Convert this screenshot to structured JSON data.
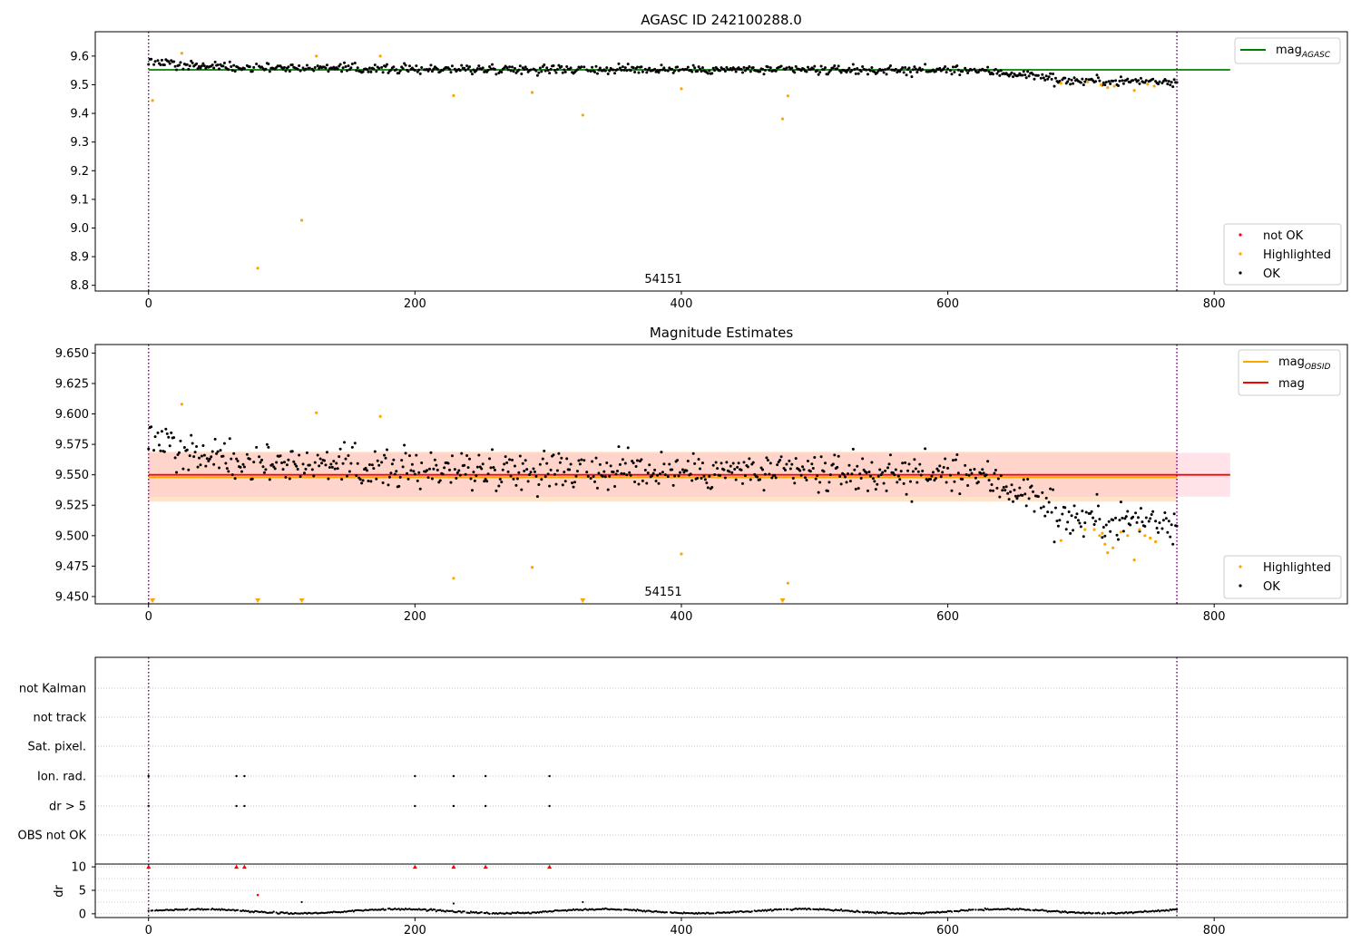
{
  "figure": {
    "background": "#ffffff"
  },
  "colors": {
    "ok": "#000000",
    "highlighted": "#ffa500",
    "not_ok": "#ff0000",
    "agasc_line": "#008000",
    "obsid_line": "#ffa500",
    "mag_line": "#ff0000",
    "mag_band": "#ffc0cb",
    "obsid_band": "#ffdab9",
    "vline": "#800080",
    "grid": "#b0b0b0"
  },
  "chart_data": [
    {
      "type": "scatter",
      "title": "AGASC ID 242100288.0",
      "xlim": [
        -40,
        900
      ],
      "ylim": [
        8.78,
        9.685
      ],
      "xticks": [
        0,
        200,
        400,
        600,
        800
      ],
      "yticks": [
        8.8,
        8.9,
        9.0,
        9.1,
        9.2,
        9.3,
        9.4,
        9.5,
        9.6
      ],
      "ytick_labels": [
        "8.8",
        "8.9",
        "9.0",
        "9.1",
        "9.2",
        "9.3",
        "9.4",
        "9.5",
        "9.6"
      ],
      "vlines": [
        0,
        772
      ],
      "hline": {
        "value": 9.552,
        "xmin": 0,
        "xmax": 812
      },
      "annotation": {
        "text": "54151",
        "x": 385,
        "y": 8.81
      },
      "legend_lines": {
        "items": [
          "mag_{AGASC}"
        ],
        "base": [
          "mag"
        ],
        "sub": [
          "AGASC"
        ],
        "placement": "upper right"
      },
      "legend_points": {
        "items": [
          "not OK",
          "Highlighted",
          "OK"
        ],
        "placement": "lower right"
      },
      "highlighted_points": [
        [
          3,
          9.445
        ],
        [
          25,
          9.61
        ],
        [
          82,
          8.86
        ],
        [
          115,
          9.027
        ],
        [
          126,
          9.6
        ],
        [
          174,
          9.6
        ],
        [
          229,
          9.462
        ],
        [
          288,
          9.473
        ],
        [
          326,
          9.394
        ],
        [
          400,
          9.486
        ],
        [
          476,
          9.381
        ],
        [
          480,
          9.461
        ],
        [
          685,
          9.505
        ],
        [
          705,
          9.51
        ],
        [
          715,
          9.5
        ],
        [
          720,
          9.49
        ],
        [
          725,
          9.495
        ],
        [
          740,
          9.48
        ],
        [
          750,
          9.502
        ],
        [
          755,
          9.495
        ]
      ]
    },
    {
      "type": "scatter",
      "title": "Magnitude Estimates",
      "xlim": [
        -40,
        900
      ],
      "ylim": [
        9.444,
        9.657
      ],
      "xticks": [
        0,
        200,
        400,
        600,
        800
      ],
      "yticks": [
        9.45,
        9.475,
        9.5,
        9.525,
        9.55,
        9.575,
        9.6,
        9.625,
        9.65
      ],
      "ytick_labels": [
        "9.450",
        "9.475",
        "9.500",
        "9.525",
        "9.550",
        "9.575",
        "9.600",
        "9.625",
        "9.650"
      ],
      "vlines": [
        0,
        772
      ],
      "mag_band": [
        9.532,
        9.568
      ],
      "obsid_band": [
        9.528,
        9.569
      ],
      "mag_value": 9.55,
      "obsid_value": 9.548,
      "annotation": {
        "text": "54151",
        "x": 385,
        "y": 9.453
      },
      "legend_lines": {
        "items": [
          "mag_{OBSID}",
          "mag"
        ],
        "base": [
          "mag",
          "mag"
        ],
        "sub": [
          "OBSID",
          ""
        ],
        "placement": "upper right"
      },
      "legend_points": {
        "items": [
          "Highlighted",
          "OK"
        ],
        "placement": "lower right"
      },
      "highlighted_points": [
        [
          25,
          9.608
        ],
        [
          126,
          9.601
        ],
        [
          174,
          9.598
        ],
        [
          229,
          9.465
        ],
        [
          288,
          9.474
        ],
        [
          400,
          9.485
        ],
        [
          480,
          9.461
        ],
        [
          685,
          9.496
        ],
        [
          703,
          9.505
        ],
        [
          710,
          9.505
        ],
        [
          714,
          9.5
        ],
        [
          716,
          9.502
        ],
        [
          718,
          9.493
        ],
        [
          720,
          9.486
        ],
        [
          724,
          9.49
        ],
        [
          730,
          9.503
        ],
        [
          735,
          9.5
        ],
        [
          740,
          9.48
        ],
        [
          744,
          9.505
        ],
        [
          748,
          9.5
        ],
        [
          752,
          9.498
        ],
        [
          756,
          9.495
        ]
      ],
      "below_range_markers": [
        3,
        82,
        115,
        326,
        476
      ]
    },
    {
      "type": "scatter",
      "title": "",
      "xlim": [
        -40,
        900
      ],
      "xticks": [
        0,
        200,
        400,
        600,
        800
      ],
      "vlines": [
        0,
        772
      ],
      "flag_rows": [
        "not Kalman",
        "not track",
        "Sat. pixel.",
        "Ion. rad.",
        "dr > 5",
        "OBS not OK"
      ],
      "flag_points": {
        "Ion. rad.": [
          0,
          66,
          72,
          200,
          229,
          253,
          301
        ],
        "dr > 5": [
          0,
          66,
          72,
          200,
          229,
          253,
          301
        ]
      },
      "dr": {
        "ylabel": "dr",
        "ylim": [
          -0.8,
          10.6
        ],
        "yticks": [
          0,
          5,
          10
        ],
        "clipped_at": 10,
        "clipped_points": [
          0,
          66,
          72,
          200,
          229,
          253,
          301
        ],
        "outliers_red": [
          [
            82,
            4.0
          ]
        ],
        "outliers_black": [
          [
            115,
            2.5
          ],
          [
            229,
            2.2
          ],
          [
            326,
            2.5
          ]
        ]
      }
    }
  ]
}
